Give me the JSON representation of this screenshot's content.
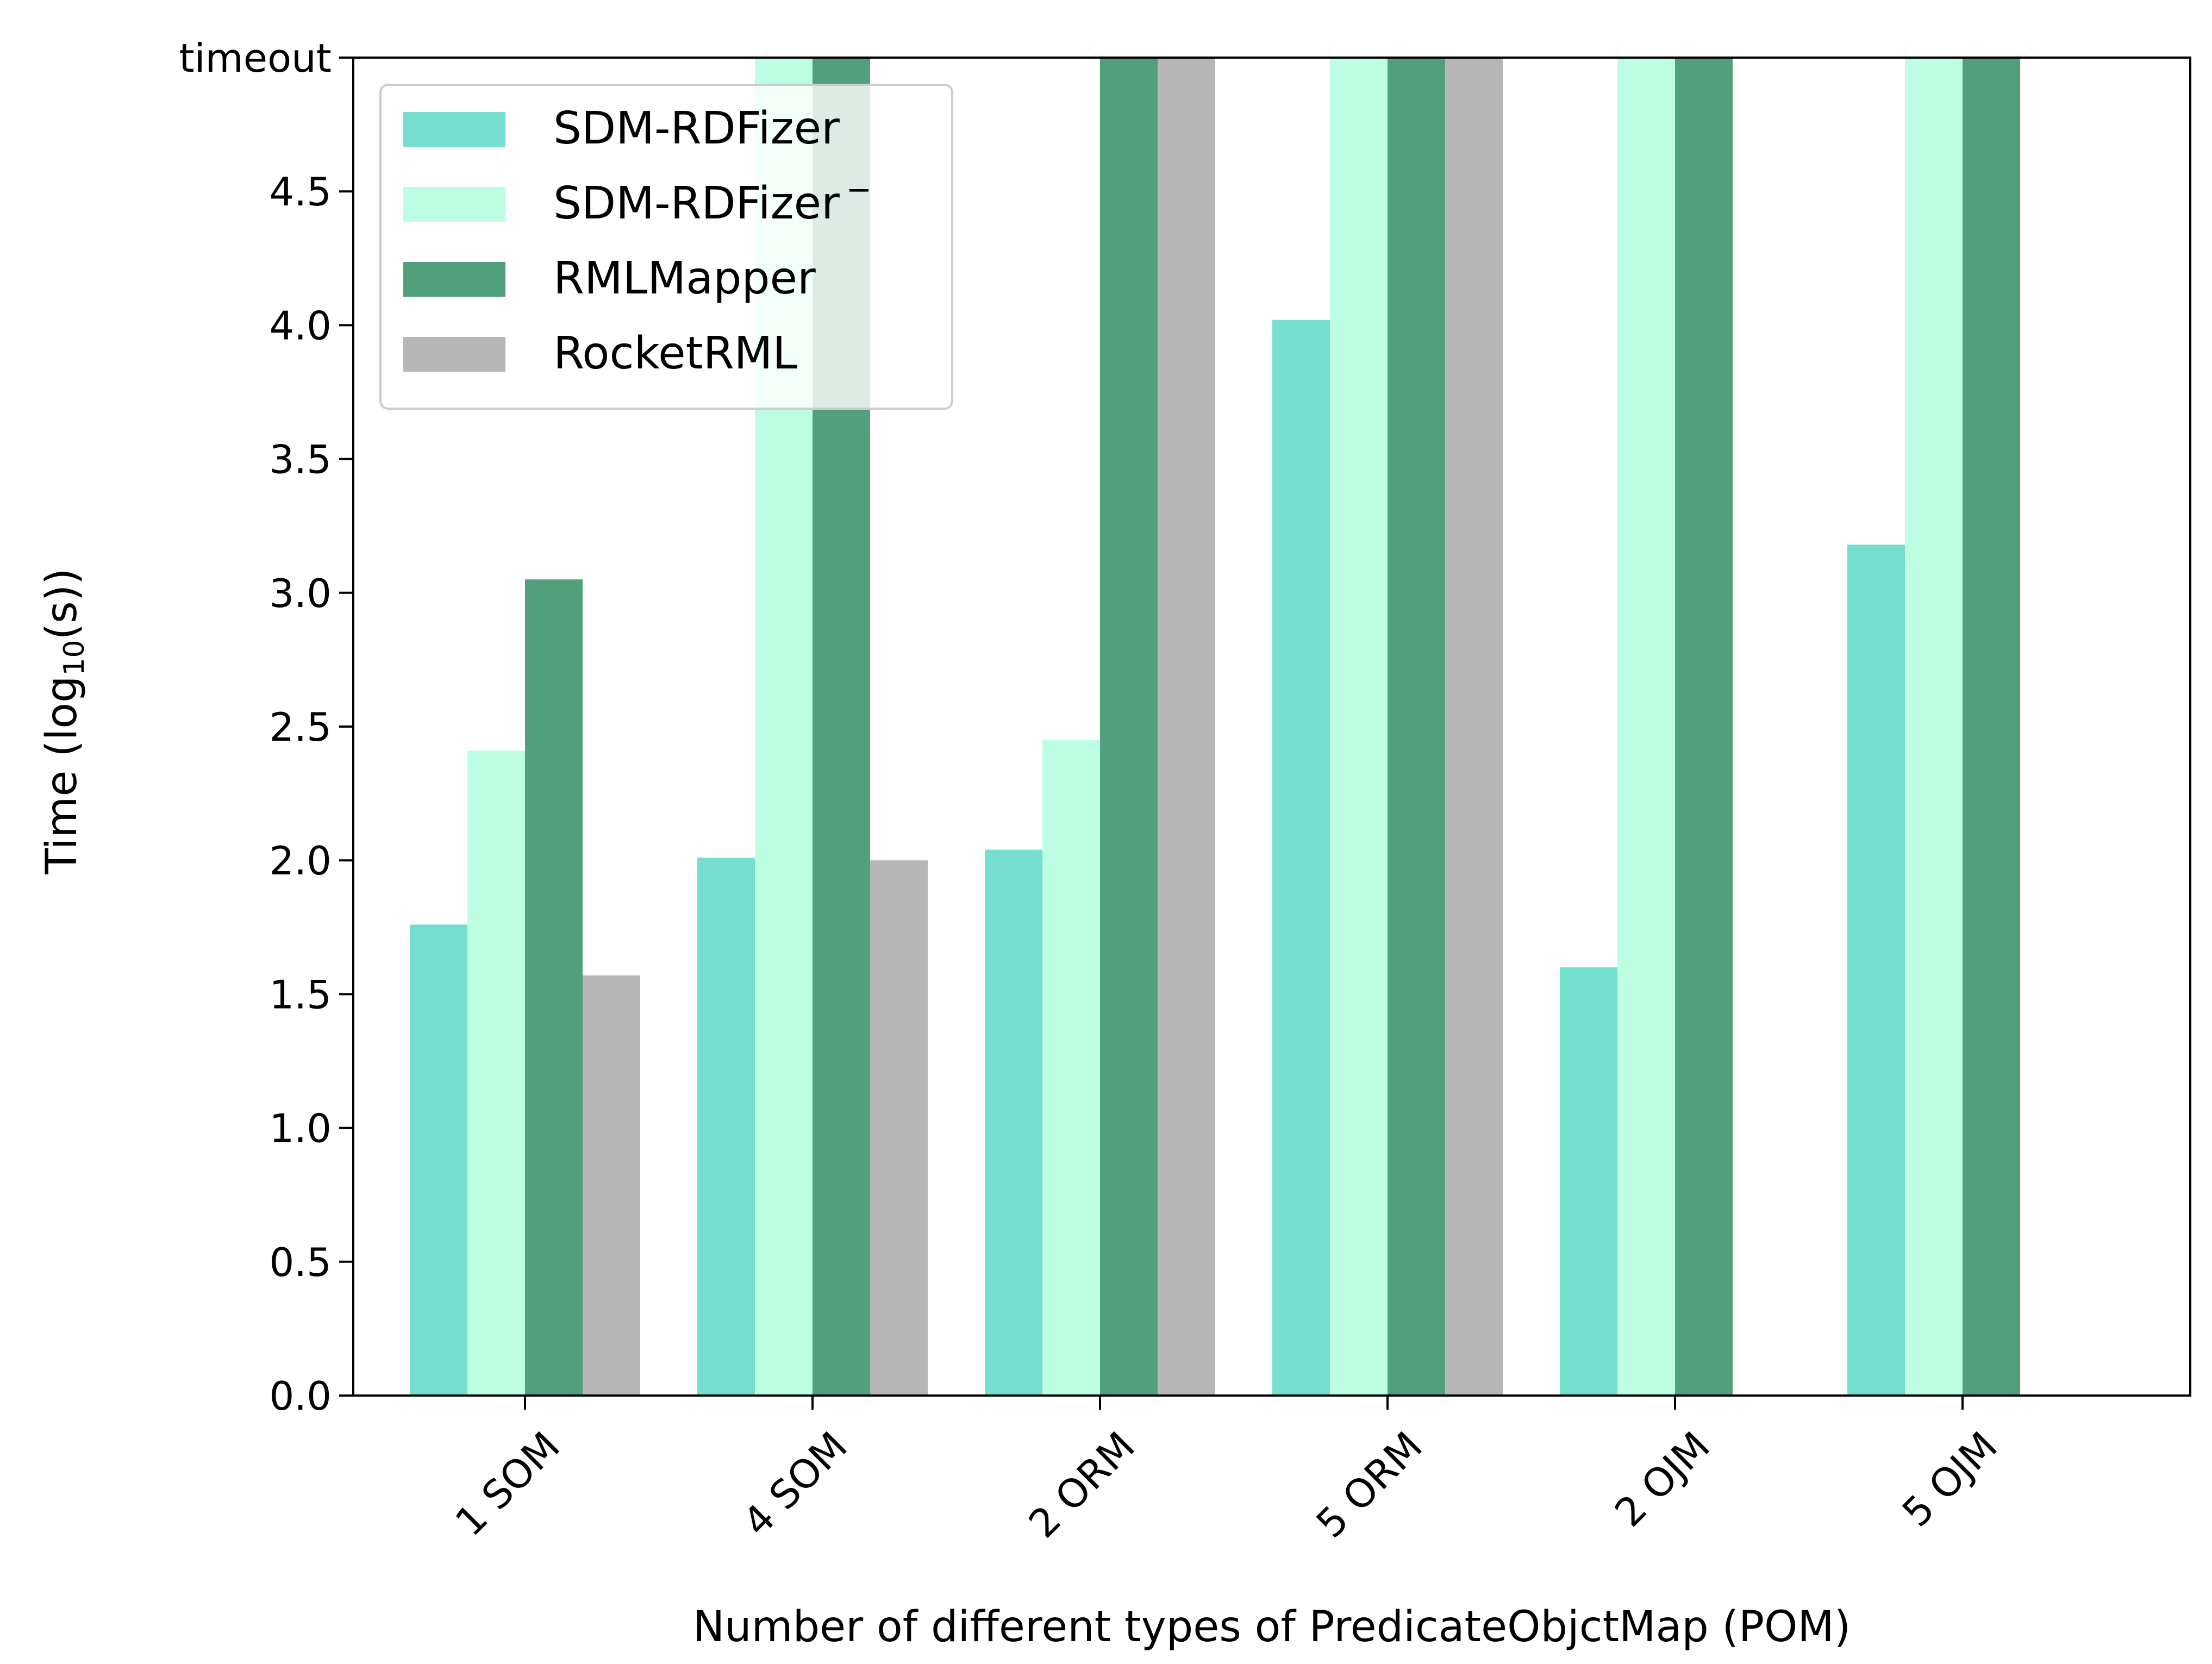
{
  "chart_data": {
    "type": "bar",
    "xlabel": "Number of different types of PredicateObjctMap (POM)",
    "ylabel": "Time (log",
    "ylabel_sub": "10",
    "ylabel_tail": "(s))",
    "categories": [
      "1 SOM",
      "4 SOM",
      "2 ORM",
      "5 ORM",
      "2 OJM",
      "5 OJM"
    ],
    "ylim": [
      0,
      5
    ],
    "yticks": [
      {
        "value": 0.0,
        "label": "0.0"
      },
      {
        "value": 0.5,
        "label": "0.5"
      },
      {
        "value": 1.0,
        "label": "1.0"
      },
      {
        "value": 1.5,
        "label": "1.5"
      },
      {
        "value": 2.0,
        "label": "2.0"
      },
      {
        "value": 2.5,
        "label": "2.5"
      },
      {
        "value": 3.0,
        "label": "3.0"
      },
      {
        "value": 3.5,
        "label": "3.5"
      },
      {
        "value": 4.0,
        "label": "4.0"
      },
      {
        "value": 4.5,
        "label": "4.5"
      },
      {
        "value": 5.0,
        "label": "timeout"
      }
    ],
    "series": [
      {
        "name": "SDM-RDFizer",
        "sup": "",
        "color": "#76ded0",
        "values": [
          1.76,
          2.01,
          2.04,
          4.02,
          1.6,
          3.18
        ]
      },
      {
        "name": "SDM-RDFizer",
        "sup": "−",
        "color": "#bdfde2",
        "values": [
          2.41,
          5.0,
          2.45,
          5.0,
          5.0,
          5.0
        ]
      },
      {
        "name": "RMLMapper",
        "sup": "",
        "color": "#519f7d",
        "values": [
          3.05,
          5.0,
          5.0,
          5.0,
          5.0,
          5.0
        ]
      },
      {
        "name": "RocketRML",
        "sup": "",
        "color": "#b7b7b7",
        "values": [
          1.57,
          2.0,
          5.0,
          5.0,
          null,
          null
        ]
      }
    ],
    "legend_position": "top-left",
    "grid": false
  }
}
